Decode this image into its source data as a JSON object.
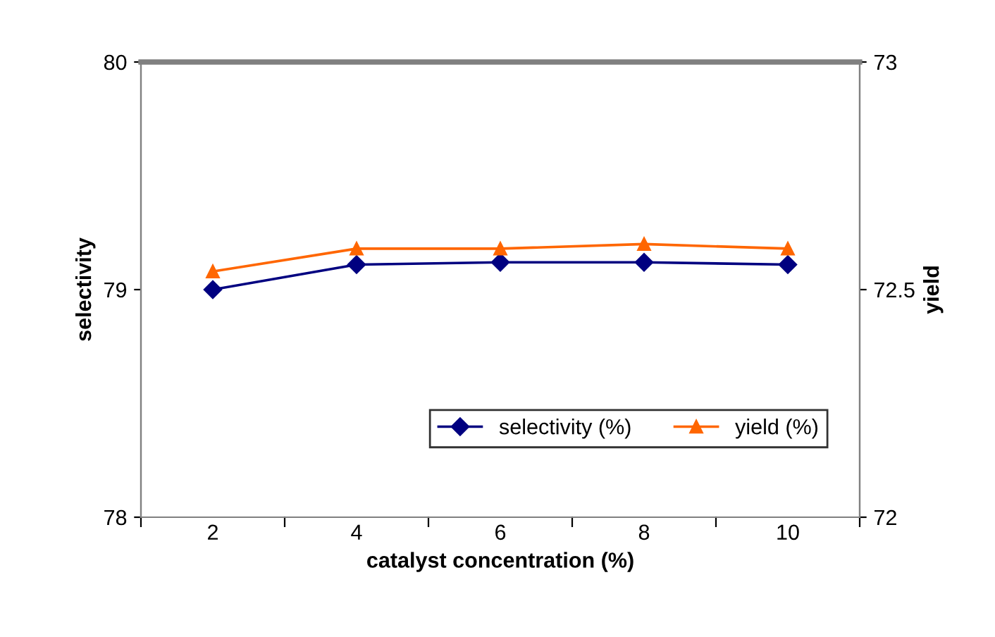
{
  "chart_data": {
    "type": "line",
    "xlabel": "catalyst concentration (%)",
    "ylabel": "selectivity",
    "y2label": "yield",
    "categories": [
      "2",
      "4",
      "6",
      "8",
      "10"
    ],
    "series": [
      {
        "name": "selectivity (%)",
        "color": "#000080",
        "values": [
          79.0,
          79.11,
          79.12,
          79.12,
          79.11
        ],
        "marker": "diamond"
      },
      {
        "name": "yield (%)",
        "color": "#ff6600",
        "values": [
          72.54,
          72.59,
          72.59,
          72.6,
          72.59
        ],
        "marker": "triangle",
        "axis": "y2"
      }
    ],
    "ylim": [
      78,
      80
    ],
    "yticks": [
      78,
      79,
      80
    ],
    "y2lim": [
      72,
      73
    ],
    "y2ticks": [
      72,
      72.5,
      73
    ],
    "grid": false,
    "legend": "bottom right"
  }
}
